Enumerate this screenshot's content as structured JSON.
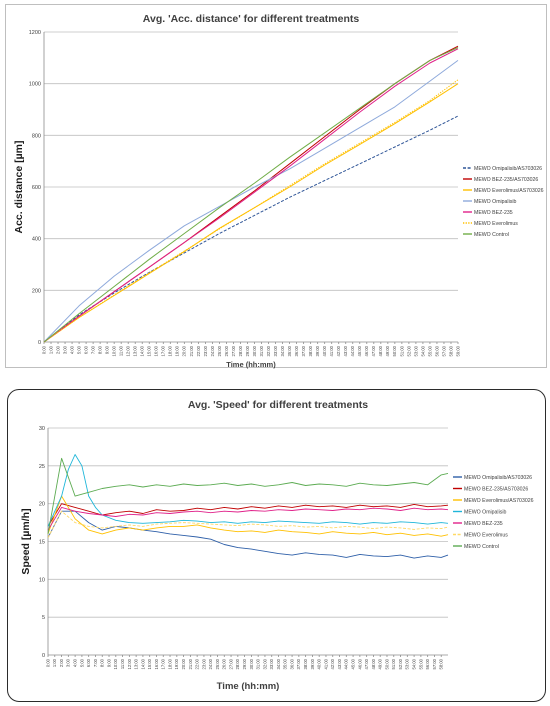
{
  "chart_data": [
    {
      "type": "line",
      "title": "Avg. 'Acc. distance' for different treatments",
      "xlabel": "Time (hh:mm)",
      "ylabel": "Acc. distance [µm]",
      "ylim": [
        0,
        1200
      ],
      "yticks": [
        0,
        200,
        400,
        600,
        800,
        1000,
        1200
      ],
      "xlim": [
        0,
        59
      ],
      "xticks": [
        "0:00",
        "1:00",
        "2:00",
        "3:00",
        "4:00",
        "5:00",
        "6:00",
        "7:00",
        "8:00",
        "9:00",
        "10:00",
        "11:00",
        "12:00",
        "13:00",
        "14:00",
        "15:00",
        "16:00",
        "17:00",
        "18:00",
        "19:00",
        "20:00",
        "21:00",
        "22:00",
        "23:00",
        "24:00",
        "25:00",
        "26:00",
        "27:00",
        "28:00",
        "29:00",
        "30:00",
        "31:00",
        "32:00",
        "33:00",
        "34:00",
        "35:00",
        "36:00",
        "37:00",
        "38:00",
        "39:00",
        "40:00",
        "41:00",
        "42:00",
        "43:00",
        "44:00",
        "45:00",
        "46:00",
        "47:00",
        "48:00",
        "49:00",
        "50:00",
        "51:00",
        "52:00",
        "53:00",
        "54:00",
        "55:00",
        "56:00",
        "57:00",
        "58:00",
        "59:00"
      ],
      "grid": "horizontal",
      "legend": "right",
      "series": [
        {
          "name": "MEWO Omipalisib/AS703026",
          "color": "#2f5597",
          "dash": "dash",
          "x": [
            0,
            5,
            10,
            15,
            20,
            25,
            30,
            35,
            40,
            45,
            50,
            55,
            59
          ],
          "values": [
            0,
            105,
            190,
            270,
            345,
            420,
            490,
            560,
            625,
            690,
            755,
            820,
            875
          ]
        },
        {
          "name": "MEWO BEZ-235/AS703026",
          "color": "#c00000",
          "dash": "solid",
          "x": [
            0,
            5,
            10,
            15,
            20,
            25,
            30,
            35,
            40,
            45,
            50,
            55,
            59
          ],
          "values": [
            0,
            100,
            195,
            290,
            385,
            485,
            585,
            690,
            795,
            900,
            1000,
            1090,
            1145
          ]
        },
        {
          "name": "MEWO Everolimus/AS703026",
          "color": "#ffc000",
          "dash": "solid",
          "x": [
            0,
            5,
            10,
            15,
            20,
            25,
            30,
            35,
            40,
            45,
            50,
            55,
            59
          ],
          "values": [
            0,
            95,
            180,
            265,
            350,
            440,
            520,
            600,
            685,
            765,
            845,
            930,
            1000
          ]
        },
        {
          "name": "MEWO Omipalisib",
          "color": "#8ea9db",
          "dash": "solid",
          "x": [
            0,
            5,
            10,
            15,
            20,
            25,
            30,
            35,
            40,
            45,
            50,
            55,
            59
          ],
          "values": [
            0,
            140,
            255,
            355,
            450,
            525,
            600,
            670,
            750,
            830,
            910,
            1010,
            1090
          ]
        },
        {
          "name": "MEWO BEZ-235",
          "color": "#e0218a",
          "dash": "solid",
          "x": [
            0,
            5,
            10,
            15,
            20,
            25,
            30,
            35,
            40,
            45,
            50,
            55,
            59
          ],
          "values": [
            0,
            100,
            195,
            290,
            385,
            480,
            580,
            680,
            785,
            890,
            990,
            1080,
            1135
          ]
        },
        {
          "name": "MEWO Everolimus",
          "color": "#ffc000",
          "dash": "dot",
          "x": [
            0,
            5,
            10,
            15,
            20,
            25,
            30,
            35,
            40,
            45,
            50,
            55,
            59
          ],
          "values": [
            0,
            95,
            182,
            268,
            352,
            438,
            520,
            605,
            690,
            770,
            850,
            935,
            1015
          ]
        },
        {
          "name": "MEWO Control",
          "color": "#70ad47",
          "dash": "solid",
          "x": [
            0,
            5,
            10,
            15,
            20,
            25,
            30,
            35,
            40,
            45,
            50,
            55,
            59
          ],
          "values": [
            0,
            110,
            215,
            320,
            420,
            520,
            615,
            715,
            810,
            905,
            1000,
            1090,
            1140
          ]
        }
      ]
    },
    {
      "type": "line",
      "title": "Avg. 'Speed' for different treatments",
      "xlabel": "Time (hh:mm)",
      "ylabel": "Speed [µm/h]",
      "ylim": [
        0,
        30
      ],
      "yticks": [
        0,
        5,
        10,
        15,
        20,
        25,
        30
      ],
      "xlim": [
        0,
        59
      ],
      "xticks": [
        "0:00",
        "1:00",
        "2:00",
        "3:00",
        "4:00",
        "5:00",
        "6:00",
        "7:00",
        "8:00",
        "9:00",
        "10:00",
        "11:00",
        "12:00",
        "13:00",
        "14:00",
        "15:00",
        "16:00",
        "17:00",
        "18:00",
        "19:00",
        "20:00",
        "21:00",
        "22:00",
        "23:00",
        "24:00",
        "25:00",
        "26:00",
        "27:00",
        "28:00",
        "29:00",
        "30:00",
        "31:00",
        "32:00",
        "33:00",
        "34:00",
        "35:00",
        "36:00",
        "37:00",
        "38:00",
        "39:00",
        "40:00",
        "41:00",
        "42:00",
        "43:00",
        "44:00",
        "45:00",
        "46:00",
        "47:00",
        "48:00",
        "49:00",
        "50:00",
        "51:00",
        "52:00",
        "53:00",
        "54:00",
        "55:00",
        "56:00",
        "57:00",
        "58:00"
      ],
      "grid": "horizontal",
      "legend": "right",
      "series": [
        {
          "name": "MEWO Omipalisib/AS703026",
          "color": "#2e5fa8",
          "dash": "solid",
          "x": [
            0,
            2,
            4,
            6,
            8,
            10,
            12,
            14,
            16,
            18,
            20,
            22,
            24,
            26,
            28,
            30,
            32,
            34,
            36,
            38,
            40,
            42,
            44,
            46,
            48,
            50,
            52,
            54,
            56,
            58,
            59
          ],
          "values": [
            15.5,
            19,
            19,
            17.5,
            16.5,
            17,
            16.8,
            16.5,
            16.3,
            16,
            15.8,
            15.6,
            15.3,
            14.6,
            14.2,
            14,
            13.7,
            13.4,
            13.2,
            13.5,
            13.3,
            13.2,
            12.9,
            13.3,
            13.1,
            13,
            13.2,
            12.8,
            13.1,
            12.9,
            13.2
          ]
        },
        {
          "name": "MEWO BEZ-235/AS703026",
          "color": "#c00000",
          "dash": "solid",
          "x": [
            0,
            2,
            4,
            6,
            8,
            10,
            12,
            14,
            16,
            18,
            20,
            22,
            24,
            26,
            28,
            30,
            32,
            34,
            36,
            38,
            40,
            42,
            44,
            46,
            48,
            50,
            52,
            54,
            56,
            58,
            59
          ],
          "values": [
            17,
            20,
            19.5,
            19,
            18.5,
            18.8,
            19,
            18.7,
            19.2,
            19,
            19.1,
            19.4,
            19.2,
            19.5,
            19.3,
            19.6,
            19.4,
            19.7,
            19.5,
            19.8,
            19.6,
            19.7,
            19.5,
            19.8,
            19.6,
            19.7,
            19.5,
            19.9,
            19.6,
            19.7,
            19.8
          ]
        },
        {
          "name": "MEWO Everolimus/AS703026",
          "color": "#ffc000",
          "dash": "solid",
          "x": [
            0,
            2,
            4,
            6,
            8,
            10,
            12,
            14,
            16,
            18,
            20,
            22,
            24,
            26,
            28,
            30,
            32,
            34,
            36,
            38,
            40,
            42,
            44,
            46,
            48,
            50,
            52,
            54,
            56,
            58,
            59
          ],
          "values": [
            16,
            21,
            18,
            16.5,
            16,
            16.5,
            16.8,
            16.5,
            16.8,
            17,
            17,
            17.2,
            16.8,
            16.5,
            16.3,
            16.4,
            16.2,
            16.5,
            16.3,
            16.2,
            16,
            16.3,
            16.1,
            16,
            16.2,
            15.9,
            16.1,
            15.8,
            16,
            15.7,
            15.9
          ]
        },
        {
          "name": "MEWO Omipalisib",
          "color": "#1fb6d9",
          "dash": "solid",
          "x": [
            0,
            2,
            3,
            4,
            5,
            6,
            7,
            8,
            10,
            12,
            14,
            16,
            18,
            20,
            22,
            24,
            26,
            28,
            30,
            32,
            34,
            36,
            38,
            40,
            42,
            44,
            46,
            48,
            50,
            52,
            54,
            56,
            58,
            59
          ],
          "values": [
            17,
            21,
            24.5,
            26.5,
            25,
            21,
            19.5,
            18.5,
            17.8,
            17.5,
            17.4,
            17.5,
            17.6,
            17.8,
            17.7,
            17.5,
            17.6,
            17.4,
            17.6,
            17.5,
            17.7,
            17.6,
            17.5,
            17.4,
            17.6,
            17.5,
            17.3,
            17.5,
            17.4,
            17.6,
            17.5,
            17.3,
            17.5,
            17.4
          ]
        },
        {
          "name": "MEWO BEZ-235",
          "color": "#e0218a",
          "dash": "solid",
          "x": [
            0,
            2,
            4,
            6,
            8,
            10,
            12,
            14,
            16,
            18,
            20,
            22,
            24,
            26,
            28,
            30,
            32,
            34,
            36,
            38,
            40,
            42,
            44,
            46,
            48,
            50,
            52,
            54,
            56,
            58,
            59
          ],
          "values": [
            16.5,
            19.5,
            19,
            18.7,
            18.5,
            18.3,
            18.6,
            18.5,
            18.8,
            18.7,
            18.9,
            19,
            18.8,
            19,
            18.9,
            19.1,
            19,
            19.2,
            19.1,
            19.3,
            19.2,
            19.1,
            19.3,
            19.2,
            19.4,
            19.3,
            19.1,
            19.4,
            19.2,
            19.3,
            19.2
          ]
        },
        {
          "name": "MEWO Everolimus",
          "color": "#ffd966",
          "dash": "dash",
          "x": [
            0,
            2,
            4,
            6,
            8,
            10,
            12,
            14,
            16,
            18,
            20,
            22,
            24,
            26,
            28,
            30,
            32,
            34,
            36,
            38,
            40,
            42,
            44,
            46,
            48,
            50,
            52,
            54,
            56,
            58,
            59
          ],
          "values": [
            15.5,
            19,
            17.5,
            17,
            16.8,
            17,
            17.2,
            17,
            17.3,
            17.4,
            17.5,
            17.4,
            17.3,
            17.2,
            17.1,
            17.3,
            17.2,
            17,
            17.1,
            16.9,
            17,
            16.8,
            17,
            16.9,
            16.7,
            16.9,
            16.8,
            16.6,
            16.8,
            16.7,
            16.9
          ]
        },
        {
          "name": "MEWO Control",
          "color": "#5cab52",
          "dash": "solid",
          "x": [
            0,
            2,
            4,
            6,
            8,
            10,
            12,
            14,
            16,
            18,
            20,
            22,
            24,
            26,
            28,
            30,
            32,
            34,
            36,
            38,
            40,
            42,
            44,
            46,
            48,
            50,
            52,
            54,
            56,
            58,
            59
          ],
          "values": [
            16,
            26,
            21,
            21.5,
            22,
            22.3,
            22.5,
            22.2,
            22.5,
            22.3,
            22.6,
            22.4,
            22.5,
            22.7,
            22.4,
            22.6,
            22.3,
            22.5,
            22.8,
            22.4,
            22.6,
            22.5,
            22.3,
            22.7,
            22.5,
            22.4,
            22.6,
            22.8,
            22.5,
            23.8,
            24
          ]
        }
      ]
    }
  ]
}
